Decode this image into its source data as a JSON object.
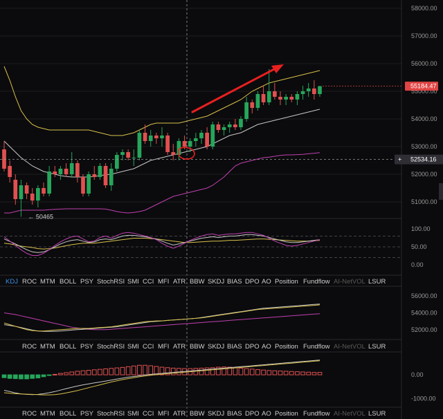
{
  "chart_data": {
    "type": "candlestick",
    "price_axis": {
      "ticks": [
        "58000.00",
        "57000.00",
        "56000.00",
        "55000.00",
        "54000.00",
        "53000.00",
        "52000.00",
        "51000.00"
      ],
      "tick_values": [
        58000,
        57000,
        56000,
        55000,
        54000,
        53000,
        52000,
        51000
      ],
      "ylim": [
        50400,
        58300
      ]
    },
    "last_price": "55184.47",
    "last_price_value": 55184.47,
    "crosshair_price": "52534.16",
    "crosshair_price_value": 52534.16,
    "crosshair_plus": "+",
    "low_label": "← 50465",
    "low_value": 50465,
    "colors": {
      "up": "#26a65b",
      "down": "#e05050",
      "boll_upper": "#d8c04a",
      "boll_mid": "#c8c8c8",
      "boll_lower": "#c040b0",
      "arrow": "#e82020",
      "price_tag": "#e04444"
    },
    "candles": [
      {
        "o": 52900,
        "h": 53200,
        "l": 52100,
        "c": 52200
      },
      {
        "o": 52300,
        "h": 52500,
        "l": 51700,
        "c": 51900
      },
      {
        "o": 51800,
        "h": 52000,
        "l": 50900,
        "c": 51100
      },
      {
        "o": 51100,
        "h": 51800,
        "l": 50465,
        "c": 51600
      },
      {
        "o": 51600,
        "h": 51700,
        "l": 51100,
        "c": 51300
      },
      {
        "o": 51300,
        "h": 51500,
        "l": 50900,
        "c": 51050
      },
      {
        "o": 51050,
        "h": 51600,
        "l": 50800,
        "c": 51500
      },
      {
        "o": 51500,
        "h": 51700,
        "l": 51200,
        "c": 51300
      },
      {
        "o": 51300,
        "h": 52300,
        "l": 51200,
        "c": 52100
      },
      {
        "o": 52100,
        "h": 52300,
        "l": 51900,
        "c": 52000
      },
      {
        "o": 52000,
        "h": 52300,
        "l": 51800,
        "c": 52200
      },
      {
        "o": 52200,
        "h": 52400,
        "l": 51900,
        "c": 52000
      },
      {
        "o": 52000,
        "h": 52800,
        "l": 51900,
        "c": 52400
      },
      {
        "o": 52400,
        "h": 52500,
        "l": 51700,
        "c": 51900
      },
      {
        "o": 51900,
        "h": 52000,
        "l": 51200,
        "c": 51300
      },
      {
        "o": 51300,
        "h": 52100,
        "l": 51200,
        "c": 52000
      },
      {
        "o": 52000,
        "h": 52300,
        "l": 51800,
        "c": 51900
      },
      {
        "o": 51900,
        "h": 52400,
        "l": 51800,
        "c": 52300
      },
      {
        "o": 52300,
        "h": 52400,
        "l": 51500,
        "c": 51600
      },
      {
        "o": 51600,
        "h": 52400,
        "l": 51400,
        "c": 52200
      },
      {
        "o": 52200,
        "h": 52800,
        "l": 52100,
        "c": 52700
      },
      {
        "o": 52700,
        "h": 52900,
        "l": 52500,
        "c": 52800
      },
      {
        "o": 52800,
        "h": 52900,
        "l": 52500,
        "c": 52600
      },
      {
        "o": 52600,
        "h": 52900,
        "l": 52300,
        "c": 52600
      },
      {
        "o": 52600,
        "h": 53600,
        "l": 52500,
        "c": 53500
      },
      {
        "o": 53500,
        "h": 53800,
        "l": 53100,
        "c": 53200
      },
      {
        "o": 53200,
        "h": 53600,
        "l": 53000,
        "c": 53400
      },
      {
        "o": 53400,
        "h": 53500,
        "l": 53100,
        "c": 53300
      },
      {
        "o": 53300,
        "h": 53700,
        "l": 53000,
        "c": 53400
      },
      {
        "o": 53400,
        "h": 53500,
        "l": 52700,
        "c": 52800
      },
      {
        "o": 52800,
        "h": 53100,
        "l": 52500,
        "c": 52700
      },
      {
        "o": 52700,
        "h": 53300,
        "l": 52500,
        "c": 53200
      },
      {
        "o": 53200,
        "h": 53400,
        "l": 52900,
        "c": 53000
      },
      {
        "o": 53000,
        "h": 53300,
        "l": 52800,
        "c": 53200
      },
      {
        "o": 53200,
        "h": 53500,
        "l": 53000,
        "c": 53300
      },
      {
        "o": 53300,
        "h": 53600,
        "l": 53100,
        "c": 53500
      },
      {
        "o": 53500,
        "h": 53700,
        "l": 52900,
        "c": 53000
      },
      {
        "o": 53000,
        "h": 53900,
        "l": 52900,
        "c": 53800
      },
      {
        "o": 53800,
        "h": 53900,
        "l": 53500,
        "c": 53600
      },
      {
        "o": 53600,
        "h": 53800,
        "l": 53400,
        "c": 53700
      },
      {
        "o": 53700,
        "h": 53900,
        "l": 53500,
        "c": 53800
      },
      {
        "o": 53800,
        "h": 54000,
        "l": 53600,
        "c": 53700
      },
      {
        "o": 53700,
        "h": 54100,
        "l": 53600,
        "c": 54000
      },
      {
        "o": 54000,
        "h": 54800,
        "l": 53900,
        "c": 54600
      },
      {
        "o": 54600,
        "h": 54700,
        "l": 54200,
        "c": 54400
      },
      {
        "o": 54400,
        "h": 55000,
        "l": 54300,
        "c": 54900
      },
      {
        "o": 54900,
        "h": 55200,
        "l": 54500,
        "c": 54600
      },
      {
        "o": 54600,
        "h": 55800,
        "l": 54500,
        "c": 55000
      },
      {
        "o": 55000,
        "h": 55300,
        "l": 54700,
        "c": 54800
      },
      {
        "o": 54800,
        "h": 55000,
        "l": 54500,
        "c": 54700
      },
      {
        "o": 54700,
        "h": 54900,
        "l": 54500,
        "c": 54800
      },
      {
        "o": 54800,
        "h": 54900,
        "l": 54600,
        "c": 54700
      },
      {
        "o": 54700,
        "h": 55000,
        "l": 54500,
        "c": 54900
      },
      {
        "o": 54900,
        "h": 55200,
        "l": 54700,
        "c": 55000
      },
      {
        "o": 55000,
        "h": 55300,
        "l": 54800,
        "c": 55100
      },
      {
        "o": 55100,
        "h": 55400,
        "l": 54700,
        "c": 54900
      },
      {
        "o": 54900,
        "h": 55200,
        "l": 54800,
        "c": 55184
      }
    ],
    "boll_upper": [
      55900,
      55400,
      54800,
      54300,
      54000,
      53800,
      53700,
      53650,
      53600,
      53600,
      53600,
      53600,
      53600,
      53600,
      53600,
      53600,
      53550,
      53500,
      53450,
      53400,
      53400,
      53400,
      53450,
      53500,
      53600,
      53700,
      53800,
      53850,
      53850,
      53850,
      53850,
      53850,
      53900,
      53950,
      54000,
      54050,
      54100,
      54200,
      54300,
      54400,
      54500,
      54600,
      54700,
      54850,
      55000,
      55100,
      55200,
      55300,
      55350,
      55400,
      55450,
      55500,
      55550,
      55600,
      55650,
      55700,
      55750
    ],
    "boll_mid": [
      53200,
      53000,
      52800,
      52600,
      52450,
      52300,
      52200,
      52100,
      52050,
      52000,
      51950,
      51920,
      51900,
      51900,
      51900,
      51900,
      51920,
      51950,
      51980,
      52000,
      52050,
      52100,
      52150,
      52200,
      52300,
      52400,
      52500,
      52550,
      52600,
      52650,
      52700,
      52750,
      52800,
      52850,
      52900,
      52950,
      53000,
      53100,
      53200,
      53300,
      53400,
      53450,
      53500,
      53600,
      53700,
      53800,
      53850,
      53900,
      53950,
      54000,
      54050,
      54100,
      54150,
      54200,
      54250,
      54300,
      54350
    ],
    "boll_lower": [
      50600,
      50600,
      50650,
      50700,
      50700,
      50700,
      50700,
      50700,
      50720,
      50730,
      50740,
      50750,
      50750,
      50750,
      50750,
      50750,
      50750,
      50750,
      50740,
      50700,
      50650,
      50620,
      50600,
      50620,
      50650,
      50700,
      50800,
      50900,
      51000,
      51100,
      51200,
      51250,
      51300,
      51350,
      51400,
      51450,
      51500,
      51600,
      51750,
      51900,
      52100,
      52300,
      52400,
      52450,
      52500,
      52550,
      52600,
      52620,
      52650,
      52680,
      52700,
      52700,
      52710,
      52720,
      52740,
      52760,
      52780
    ]
  },
  "indicator_panel_1": {
    "ticks": [
      "100.00",
      "50.00",
      "0.00"
    ],
    "tick_values": [
      100,
      50,
      0
    ],
    "ylim": [
      -25,
      125
    ],
    "dashed_levels": [
      80,
      50,
      20
    ],
    "series": [
      {
        "color": "#d8c04a",
        "values": [
          60,
          58,
          55,
          52,
          50,
          48,
          45,
          44,
          45,
          47,
          50,
          53,
          56,
          58,
          60,
          60,
          60,
          62,
          64,
          66,
          68,
          70,
          72,
          74,
          74,
          74,
          73,
          72,
          70,
          68,
          66,
          64,
          62,
          62,
          63,
          64,
          65,
          66,
          66,
          67,
          68,
          68,
          69,
          70,
          71,
          72,
          72,
          71,
          70,
          69,
          68,
          67,
          66,
          66,
          66,
          67,
          68
        ]
      },
      {
        "color": "#c8c8c8",
        "values": [
          72,
          65,
          58,
          50,
          42,
          36,
          34,
          36,
          42,
          50,
          58,
          64,
          68,
          70,
          66,
          62,
          64,
          70,
          72,
          70,
          75,
          80,
          82,
          82,
          80,
          78,
          75,
          72,
          66,
          60,
          55,
          58,
          62,
          66,
          70,
          74,
          76,
          78,
          76,
          78,
          80,
          80,
          82,
          84,
          84,
          82,
          80,
          76,
          72,
          68,
          64,
          62,
          62,
          64,
          66,
          68,
          70
        ]
      },
      {
        "color": "#c040b0",
        "values": [
          78,
          66,
          54,
          42,
          32,
          26,
          26,
          32,
          42,
          54,
          64,
          72,
          78,
          80,
          72,
          64,
          66,
          76,
          80,
          74,
          82,
          88,
          90,
          88,
          84,
          80,
          76,
          70,
          60,
          52,
          46,
          52,
          60,
          68,
          74,
          80,
          84,
          86,
          82,
          84,
          86,
          86,
          88,
          90,
          90,
          86,
          82,
          74,
          66,
          60,
          54,
          52,
          54,
          58,
          62,
          66,
          70
        ]
      }
    ]
  },
  "indicator_panel_2": {
    "ticks": [
      "56000.00",
      "54000.00",
      "52000.00"
    ],
    "tick_values": [
      56000,
      54000,
      52000
    ],
    "ylim": [
      51000,
      57000
    ],
    "series": [
      {
        "color": "#c040b0",
        "values": [
          54000,
          53900,
          53800,
          53650,
          53500,
          53350,
          53200,
          53050,
          52900,
          52750,
          52600,
          52450,
          52300,
          52200,
          52100,
          52050,
          52000,
          52000,
          52000,
          52050,
          52100,
          52150,
          52200,
          52250,
          52300,
          52350,
          52400,
          52450,
          52500,
          52550,
          52600,
          52650,
          52700,
          52750,
          52800,
          52850,
          52900,
          52950,
          53000,
          53050,
          53100,
          53150,
          53200,
          53250,
          53300,
          53350,
          53400,
          53450,
          53500,
          53550,
          53600,
          53650,
          53700,
          53750,
          53800,
          53850,
          53900
        ]
      },
      {
        "color": "#c8c8c8",
        "values": [
          52600,
          52500,
          52400,
          52250,
          52100,
          51950,
          51850,
          51800,
          51800,
          51800,
          51850,
          51900,
          51950,
          52000,
          52050,
          52100,
          52150,
          52200,
          52250,
          52300,
          52350,
          52450,
          52550,
          52650,
          52750,
          52850,
          52950,
          53000,
          53050,
          53100,
          53150,
          53200,
          53250,
          53300,
          53350,
          53450,
          53550,
          53650,
          53750,
          53850,
          53950,
          54050,
          54150,
          54250,
          54350,
          54450,
          54550,
          54600,
          54650,
          54700,
          54750,
          54800,
          54850,
          54900,
          54950,
          55000,
          55050
        ]
      },
      {
        "color": "#d8c04a",
        "values": [
          52800,
          52600,
          52400,
          52200,
          52000,
          51900,
          51850,
          51850,
          51900,
          51950,
          52000,
          52050,
          52100,
          52150,
          52150,
          52150,
          52200,
          52250,
          52300,
          52350,
          52450,
          52550,
          52650,
          52750,
          52850,
          52950,
          53000,
          53050,
          53050,
          53100,
          53150,
          53200,
          53250,
          53300,
          53350,
          53400,
          53500,
          53600,
          53700,
          53800,
          53900,
          54000,
          54100,
          54200,
          54300,
          54400,
          54450,
          54500,
          54550,
          54600,
          54650,
          54700,
          54750,
          54800,
          54850,
          54900,
          54950
        ]
      }
    ]
  },
  "indicator_panel_3": {
    "ticks": [
      "0.00",
      "-1000.00"
    ],
    "tick_values": [
      0,
      -1000
    ],
    "ylim": [
      -1300,
      900
    ],
    "histogram": [
      -120,
      -150,
      -160,
      -170,
      -170,
      -150,
      -130,
      -80,
      -30,
      20,
      60,
      90,
      120,
      150,
      170,
      190,
      210,
      230,
      250,
      270,
      290,
      310,
      340,
      370,
      400,
      400,
      380,
      350,
      320,
      300,
      280,
      270,
      260,
      260,
      270,
      280,
      290,
      300,
      320,
      330,
      320,
      300,
      280,
      260,
      240,
      220,
      200,
      180,
      170,
      160,
      150,
      140,
      130,
      120,
      110,
      100,
      100
    ],
    "series": [
      {
        "color": "#c8c8c8",
        "values": [
          -650,
          -700,
          -760,
          -800,
          -820,
          -830,
          -820,
          -790,
          -750,
          -700,
          -640,
          -580,
          -520,
          -470,
          -420,
          -380,
          -340,
          -300,
          -260,
          -220,
          -180,
          -140,
          -100,
          -70,
          -40,
          -10,
          20,
          40,
          60,
          80,
          100,
          120,
          140,
          160,
          180,
          200,
          220,
          240,
          260,
          280,
          300,
          320,
          340,
          360,
          380,
          400,
          420,
          440,
          460,
          480,
          500,
          520,
          540,
          560,
          580,
          600,
          620
        ]
      },
      {
        "color": "#d8c04a",
        "values": [
          -750,
          -770,
          -790,
          -800,
          -810,
          -820,
          -830,
          -840,
          -840,
          -830,
          -800,
          -760,
          -710,
          -660,
          -600,
          -540,
          -480,
          -420,
          -360,
          -300,
          -250,
          -200,
          -160,
          -120,
          -80,
          -50,
          -20,
          10,
          30,
          50,
          70,
          90,
          110,
          130,
          150,
          170,
          190,
          210,
          230,
          250,
          270,
          290,
          310,
          330,
          350,
          370,
          390,
          410,
          430,
          450,
          470,
          490,
          510,
          530,
          550,
          570,
          590
        ]
      }
    ]
  },
  "tab_bar_1": {
    "items": [
      "KDJ",
      "ROC",
      "MTM",
      "BOLL",
      "PSY",
      "StochRSI",
      "SMI",
      "CCI",
      "MFI",
      "ATR",
      "BBW",
      "SKDJ",
      "BIAS",
      "DPO",
      "AO",
      "Position",
      "Fundflow",
      "AI-NetVOL",
      "LSUR"
    ],
    "active_index": 0,
    "disabled_index": 17
  },
  "tab_bar_2": {
    "items": [
      "ROC",
      "MTM",
      "BOLL",
      "PSY",
      "StochRSI",
      "SMI",
      "CCI",
      "MFI",
      "ATR",
      "BBW",
      "SKDJ",
      "BIAS",
      "DPO",
      "AO",
      "Position",
      "Fundflow",
      "AI-NetVOL",
      "LSUR"
    ],
    "disabled_index": 16
  },
  "tab_bar_3": {
    "items": [
      "ROC",
      "MTM",
      "BOLL",
      "PSY",
      "StochRSI",
      "SMI",
      "CCI",
      "MFI",
      "ATR",
      "BBW",
      "SKDJ",
      "BIAS",
      "DPO",
      "AO",
      "Position",
      "Fundflow",
      "AI-NetVOL",
      "LSUR"
    ],
    "disabled_index": 16
  }
}
